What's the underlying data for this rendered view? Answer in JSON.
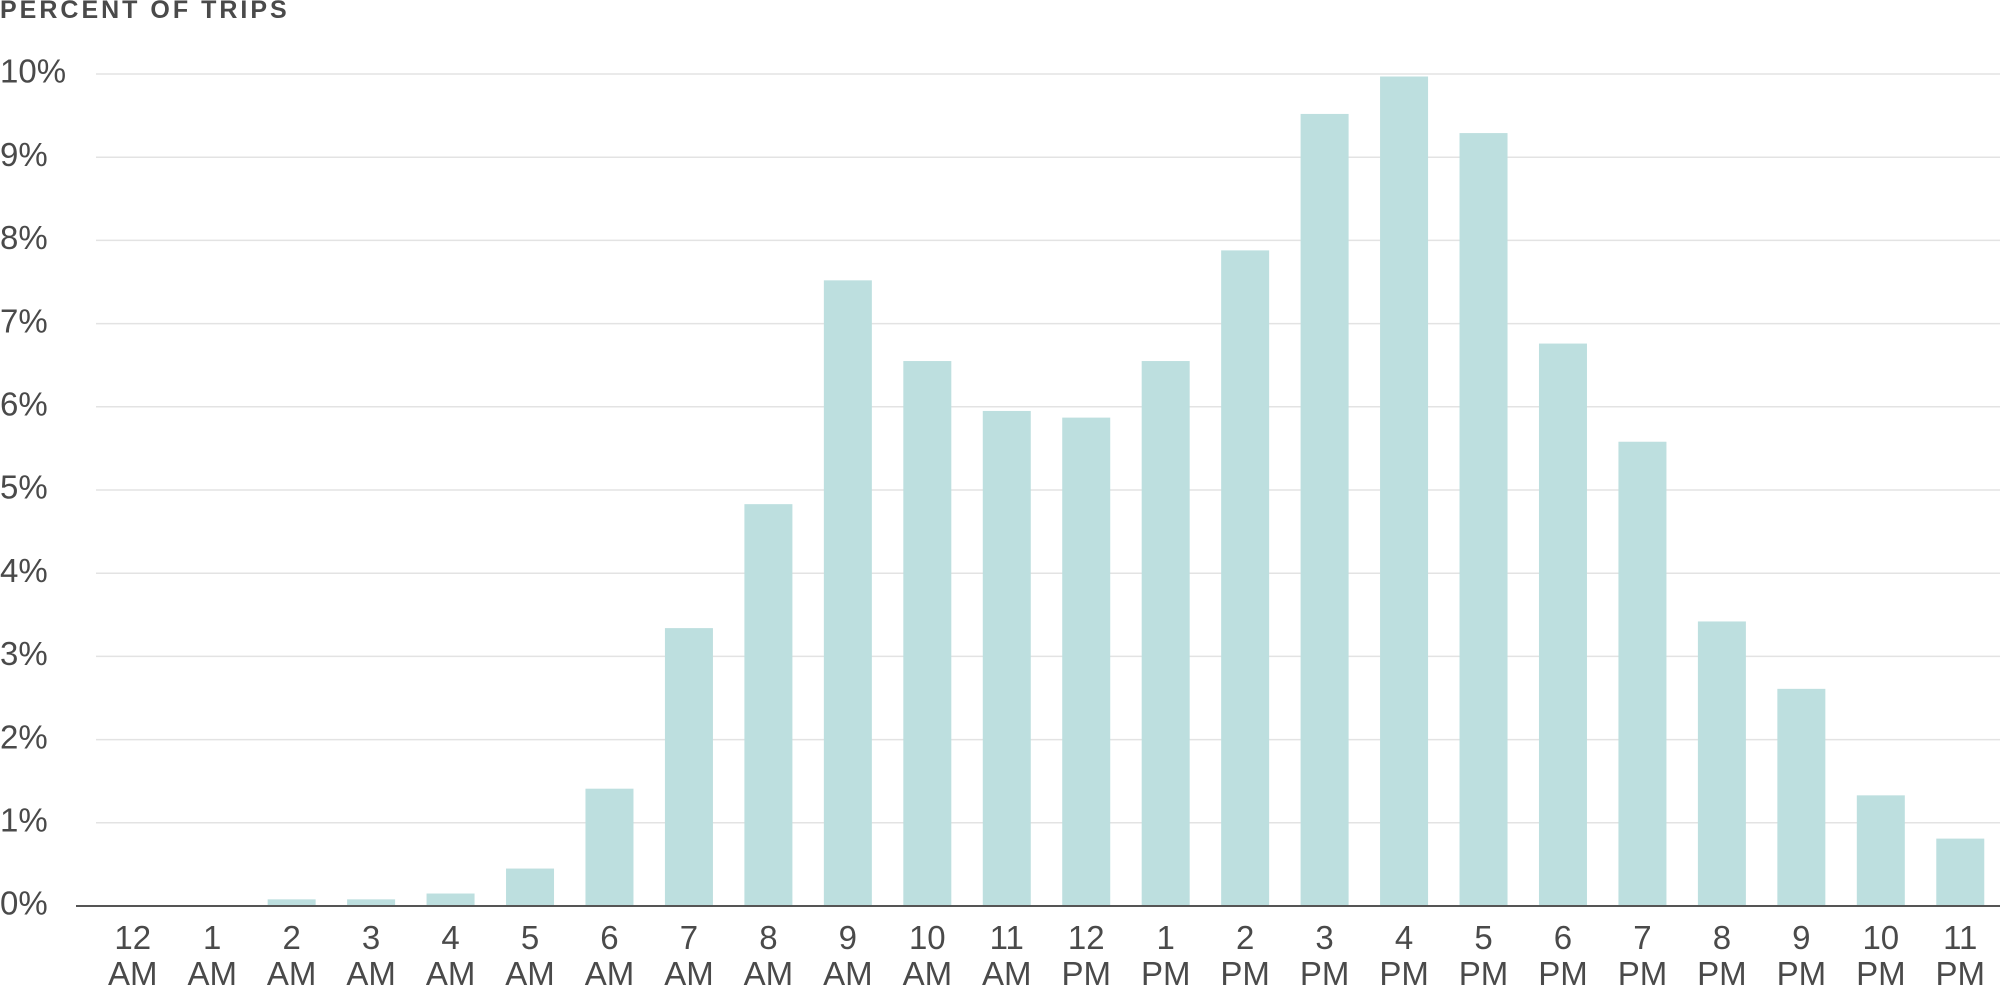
{
  "chart_data": {
    "type": "bar",
    "title": "PERCENT OF TRIPS",
    "categories": [
      "12 AM",
      "1 AM",
      "2 AM",
      "3 AM",
      "4 AM",
      "5 AM",
      "6 AM",
      "7 AM",
      "8 AM",
      "9 AM",
      "10 AM",
      "11 AM",
      "12 PM",
      "1 PM",
      "2 PM",
      "3 PM",
      "4 PM",
      "5 PM",
      "6 PM",
      "7 PM",
      "8 PM",
      "9 PM",
      "10 PM",
      "11 PM"
    ],
    "values": [
      0,
      0,
      0.08,
      0.08,
      0.15,
      0.45,
      1.41,
      3.34,
      4.83,
      7.52,
      6.55,
      5.95,
      5.87,
      6.55,
      7.88,
      9.52,
      9.97,
      9.29,
      6.76,
      5.58,
      3.42,
      2.61,
      1.33,
      0.81
    ],
    "color": "#bddfdf",
    "ylim": [
      0,
      10
    ],
    "yticks": [
      {
        "value": 0,
        "label": "0%"
      },
      {
        "value": 1,
        "label": "1%"
      },
      {
        "value": 2,
        "label": "2%"
      },
      {
        "value": 3,
        "label": "3%"
      },
      {
        "value": 4,
        "label": "4%"
      },
      {
        "value": 5,
        "label": "5%"
      },
      {
        "value": 6,
        "label": "6%"
      },
      {
        "value": 7,
        "label": "7%"
      },
      {
        "value": 8,
        "label": "8%"
      },
      {
        "value": 9,
        "label": "9%"
      },
      {
        "value": 10,
        "label": "10%"
      }
    ],
    "grid": true
  }
}
